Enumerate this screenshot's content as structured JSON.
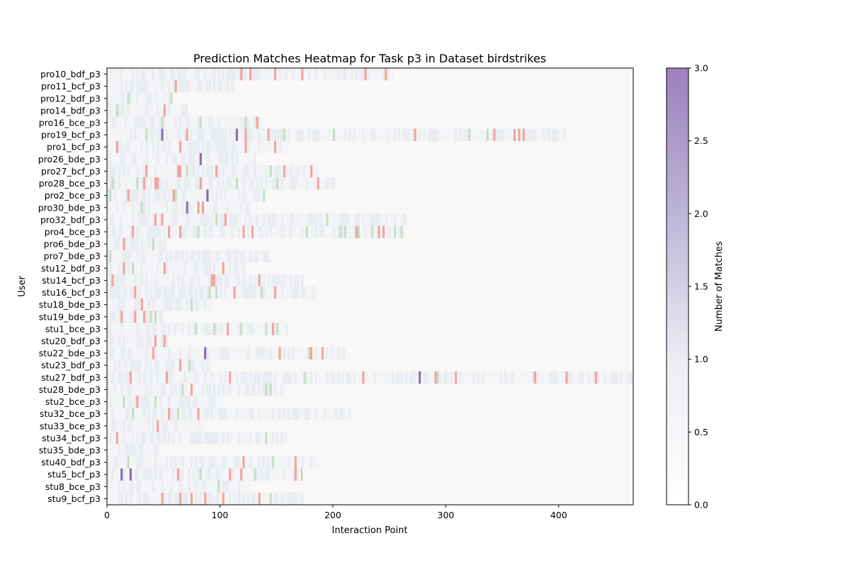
{
  "chart_data": {
    "type": "heatmap",
    "title": "Prediction Matches Heatmap for Task p3 in Dataset birdstrikes",
    "xlabel": "Interaction Point",
    "ylabel": "User",
    "xlim": [
      0,
      466
    ],
    "x_ticks": [
      0,
      100,
      200,
      300,
      400
    ],
    "users": [
      {
        "name": "pro10_bdf_p3",
        "length": 254
      },
      {
        "name": "pro11_bcf_p3",
        "length": 114
      },
      {
        "name": "pro12_bdf_p3",
        "length": 58
      },
      {
        "name": "pro14_bdf_p3",
        "length": 72
      },
      {
        "name": "pro16_bce_p3",
        "length": 136
      },
      {
        "name": "pro19_bcf_p3",
        "length": 407
      },
      {
        "name": "pro1_bcf_p3",
        "length": 161
      },
      {
        "name": "pro26_bde_p3",
        "length": 132
      },
      {
        "name": "pro27_bcf_p3",
        "length": 188
      },
      {
        "name": "pro28_bce_p3",
        "length": 202
      },
      {
        "name": "pro2_bce_p3",
        "length": 142
      },
      {
        "name": "pro30_bde_p3",
        "length": 128
      },
      {
        "name": "pro32_bdf_p3",
        "length": 265
      },
      {
        "name": "pro4_bce_p3",
        "length": 264
      },
      {
        "name": "pro6_bde_p3",
        "length": 53
      },
      {
        "name": "pro7_bde_p3",
        "length": 144
      },
      {
        "name": "stu12_bdf_p3",
        "length": 124
      },
      {
        "name": "stu14_bcf_p3",
        "length": 174
      },
      {
        "name": "stu16_bcf_p3",
        "length": 186
      },
      {
        "name": "stu18_bde_p3",
        "length": 93
      },
      {
        "name": "stu19_bde_p3",
        "length": 50
      },
      {
        "name": "stu1_bce_p3",
        "length": 161
      },
      {
        "name": "stu20_bdf_p3",
        "length": 54
      },
      {
        "name": "stu22_bde_p3",
        "length": 211
      },
      {
        "name": "stu23_bdf_p3",
        "length": 92
      },
      {
        "name": "stu27_bdf_p3",
        "length": 466
      },
      {
        "name": "stu28_bde_p3",
        "length": 158
      },
      {
        "name": "stu2_bce_p3",
        "length": 103
      },
      {
        "name": "stu32_bce_p3",
        "length": 218
      },
      {
        "name": "stu33_bce_p3",
        "length": 86
      },
      {
        "name": "stu34_bcf_p3",
        "length": 159
      },
      {
        "name": "stu35_bde_p3",
        "length": 46
      },
      {
        "name": "stu40_bdf_p3",
        "length": 188
      },
      {
        "name": "stu5_bcf_p3",
        "length": 173
      },
      {
        "name": "stu8_bce_p3",
        "length": 127
      },
      {
        "name": "stu9_bcf_p3",
        "length": 175
      }
    ],
    "colorbar": {
      "label": "Number of Matches",
      "min": 0,
      "max": 3,
      "ticks": [
        "0.0",
        "0.5",
        "1.0",
        "1.5",
        "2.0",
        "2.5",
        "3.0"
      ],
      "colors": [
        "#ffffff",
        "#dcdcec",
        "#9e80bd"
      ]
    },
    "background_color": "#f9f8f7",
    "highlight_colors": {
      "none": "#f3f4f6",
      "low": "#e9ecf1",
      "red": "#f0a49c",
      "green": "#c6dec5",
      "purple": "#8c6bb1"
    }
  }
}
